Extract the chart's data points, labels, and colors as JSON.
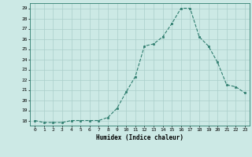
{
  "x": [
    0,
    1,
    2,
    3,
    4,
    5,
    6,
    7,
    8,
    9,
    10,
    11,
    12,
    13,
    14,
    15,
    16,
    17,
    18,
    19,
    20,
    21,
    22,
    23
  ],
  "y": [
    18.0,
    17.8,
    17.8,
    17.8,
    18.0,
    18.0,
    18.0,
    18.0,
    18.3,
    19.2,
    20.8,
    22.3,
    25.3,
    25.5,
    26.2,
    27.5,
    29.0,
    29.0,
    26.2,
    25.3,
    23.7,
    21.5,
    21.3,
    20.7
  ],
  "xlabel": "Humidex (Indice chaleur)",
  "ylim_min": 17.5,
  "ylim_max": 29.5,
  "yticks": [
    18,
    19,
    20,
    21,
    22,
    23,
    24,
    25,
    26,
    27,
    28,
    29
  ],
  "xticks": [
    0,
    1,
    2,
    3,
    4,
    5,
    6,
    7,
    8,
    9,
    10,
    11,
    12,
    13,
    14,
    15,
    16,
    17,
    18,
    19,
    20,
    21,
    22,
    23
  ],
  "line_color": "#2e7d6e",
  "marker_color": "#2e7d6e",
  "bg_color": "#cce9e5",
  "grid_color": "#aacfca"
}
